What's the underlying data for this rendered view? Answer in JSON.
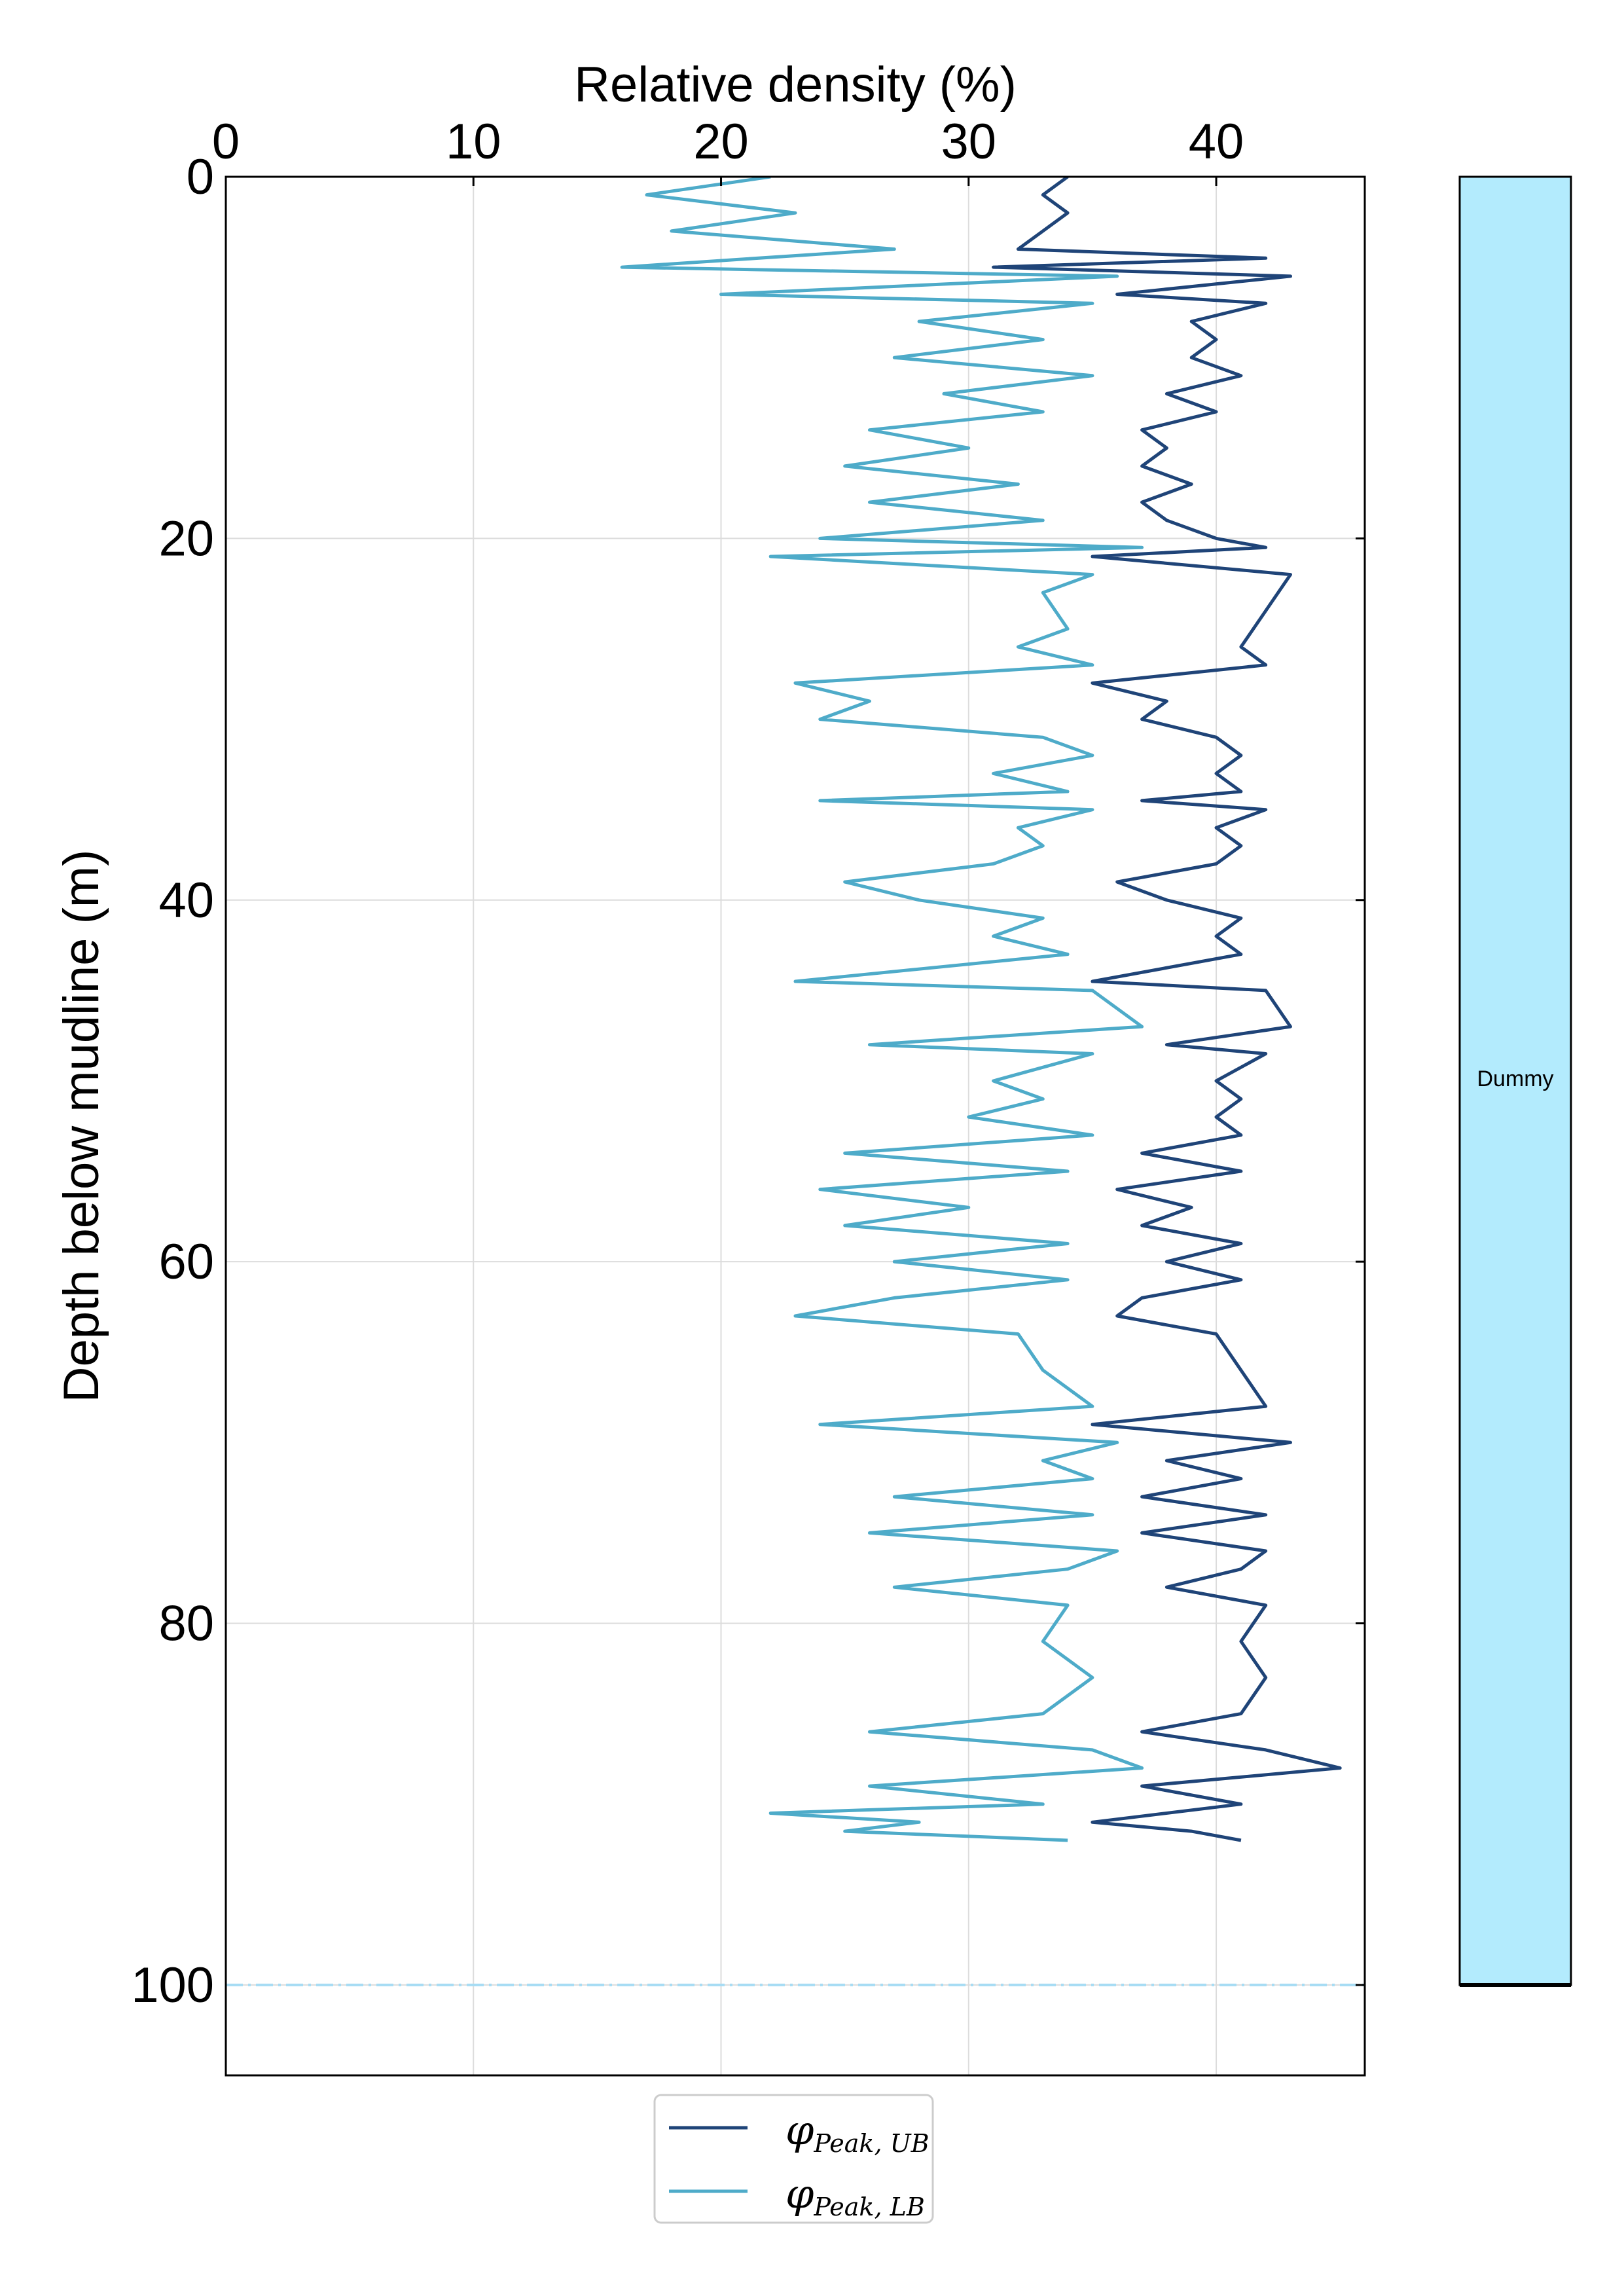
{
  "chart_data": {
    "type": "line",
    "orientation": "vertical-profile",
    "title": "",
    "xlabel": "Relative density (%)",
    "ylabel": "Depth below mudline (m)",
    "xlim": [
      0,
      46
    ],
    "ylim": [
      105,
      0
    ],
    "x_ticks": [
      "0",
      "10",
      "20",
      "30",
      "40"
    ],
    "y_ticks": [
      "0",
      "20",
      "40",
      "60",
      "80",
      "100"
    ],
    "grid": true,
    "legend_position": "bottom-center",
    "reference_line": {
      "depth": 100,
      "color": "#a6dcf4",
      "style": "dash-dot"
    },
    "series": [
      {
        "name": "φPeak,UB",
        "legend_main": "φ",
        "legend_sub": "Peak, UB",
        "color": "#1f4478",
        "points": [
          [
            34,
            0
          ],
          [
            33,
            1
          ],
          [
            34,
            2
          ],
          [
            33,
            3
          ],
          [
            32,
            4
          ],
          [
            42,
            4.5
          ],
          [
            31,
            5
          ],
          [
            43,
            5.5
          ],
          [
            36,
            6.5
          ],
          [
            42,
            7
          ],
          [
            39,
            8
          ],
          [
            40,
            9
          ],
          [
            39,
            10
          ],
          [
            41,
            11
          ],
          [
            38,
            12
          ],
          [
            40,
            13
          ],
          [
            37,
            14
          ],
          [
            38,
            15
          ],
          [
            37,
            16
          ],
          [
            39,
            17
          ],
          [
            37,
            18
          ],
          [
            38,
            19
          ],
          [
            40,
            20
          ],
          [
            42,
            20.5
          ],
          [
            35,
            21
          ],
          [
            43,
            22
          ],
          [
            42,
            24
          ],
          [
            41,
            26
          ],
          [
            42,
            27
          ],
          [
            35,
            28
          ],
          [
            38,
            29
          ],
          [
            37,
            30
          ],
          [
            40,
            31
          ],
          [
            41,
            32
          ],
          [
            40,
            33
          ],
          [
            41,
            34
          ],
          [
            37,
            34.5
          ],
          [
            42,
            35
          ],
          [
            40,
            36
          ],
          [
            41,
            37
          ],
          [
            40,
            38
          ],
          [
            36,
            39
          ],
          [
            38,
            40
          ],
          [
            41,
            41
          ],
          [
            40,
            42
          ],
          [
            41,
            43
          ],
          [
            35,
            44.5
          ],
          [
            42,
            45
          ],
          [
            43,
            47
          ],
          [
            38,
            48
          ],
          [
            42,
            48.5
          ],
          [
            40,
            50
          ],
          [
            41,
            51
          ],
          [
            40,
            52
          ],
          [
            41,
            53
          ],
          [
            37,
            54
          ],
          [
            41,
            55
          ],
          [
            36,
            56
          ],
          [
            39,
            57
          ],
          [
            37,
            58
          ],
          [
            41,
            59
          ],
          [
            38,
            60
          ],
          [
            41,
            61
          ],
          [
            37,
            62
          ],
          [
            36,
            63
          ],
          [
            40,
            64
          ],
          [
            41,
            66
          ],
          [
            42,
            68
          ],
          [
            35,
            69
          ],
          [
            43,
            70
          ],
          [
            38,
            71
          ],
          [
            41,
            72
          ],
          [
            37,
            73
          ],
          [
            42,
            74
          ],
          [
            37,
            75
          ],
          [
            42,
            76
          ],
          [
            41,
            77
          ],
          [
            38,
            78
          ],
          [
            42,
            79
          ],
          [
            41,
            81
          ],
          [
            42,
            83
          ],
          [
            41,
            85
          ],
          [
            37,
            86
          ],
          [
            42,
            87
          ],
          [
            45,
            88
          ],
          [
            37,
            89
          ],
          [
            41,
            90
          ],
          [
            35,
            91
          ],
          [
            39,
            91.5
          ],
          [
            41,
            92
          ]
        ]
      },
      {
        "name": "φPeak,LB",
        "legend_main": "φ",
        "legend_sub": "Peak, LB",
        "color": "#4eabc9",
        "points": [
          [
            22,
            0
          ],
          [
            17,
            1
          ],
          [
            23,
            2
          ],
          [
            18,
            3
          ],
          [
            27,
            4
          ],
          [
            16,
            5
          ],
          [
            36,
            5.5
          ],
          [
            20,
            6.5
          ],
          [
            35,
            7
          ],
          [
            28,
            8
          ],
          [
            33,
            9
          ],
          [
            27,
            10
          ],
          [
            35,
            11
          ],
          [
            29,
            12
          ],
          [
            33,
            13
          ],
          [
            26,
            14
          ],
          [
            30,
            15
          ],
          [
            25,
            16
          ],
          [
            32,
            17
          ],
          [
            26,
            18
          ],
          [
            33,
            19
          ],
          [
            24,
            20
          ],
          [
            37,
            20.5
          ],
          [
            22,
            21
          ],
          [
            35,
            22
          ],
          [
            33,
            23
          ],
          [
            34,
            25
          ],
          [
            32,
            26
          ],
          [
            35,
            27
          ],
          [
            23,
            28
          ],
          [
            26,
            29
          ],
          [
            24,
            30
          ],
          [
            33,
            31
          ],
          [
            35,
            32
          ],
          [
            31,
            33
          ],
          [
            34,
            34
          ],
          [
            24,
            34.5
          ],
          [
            35,
            35
          ],
          [
            32,
            36
          ],
          [
            33,
            37
          ],
          [
            31,
            38
          ],
          [
            25,
            39
          ],
          [
            28,
            40
          ],
          [
            33,
            41
          ],
          [
            31,
            42
          ],
          [
            34,
            43
          ],
          [
            23,
            44.5
          ],
          [
            35,
            45
          ],
          [
            37,
            47
          ],
          [
            26,
            48
          ],
          [
            35,
            48.5
          ],
          [
            31,
            50
          ],
          [
            33,
            51
          ],
          [
            30,
            52
          ],
          [
            35,
            53
          ],
          [
            25,
            54
          ],
          [
            34,
            55
          ],
          [
            24,
            56
          ],
          [
            30,
            57
          ],
          [
            25,
            58
          ],
          [
            34,
            59
          ],
          [
            27,
            60
          ],
          [
            34,
            61
          ],
          [
            27,
            62
          ],
          [
            23,
            63
          ],
          [
            32,
            64
          ],
          [
            33,
            66
          ],
          [
            35,
            68
          ],
          [
            24,
            69
          ],
          [
            36,
            70
          ],
          [
            33,
            71
          ],
          [
            35,
            72
          ],
          [
            27,
            73
          ],
          [
            35,
            74
          ],
          [
            26,
            75
          ],
          [
            36,
            76
          ],
          [
            34,
            77
          ],
          [
            27,
            78
          ],
          [
            34,
            79
          ],
          [
            33,
            81
          ],
          [
            35,
            83
          ],
          [
            33,
            85
          ],
          [
            26,
            86
          ],
          [
            35,
            87
          ],
          [
            37,
            88
          ],
          [
            26,
            89
          ],
          [
            33,
            90
          ],
          [
            22,
            90.5
          ],
          [
            28,
            91
          ],
          [
            25,
            91.5
          ],
          [
            34,
            92
          ]
        ]
      }
    ],
    "side_panel": {
      "label": "Dummy",
      "color": "#b3ebfd",
      "top_depth": 0,
      "bottom_depth": 100
    }
  }
}
